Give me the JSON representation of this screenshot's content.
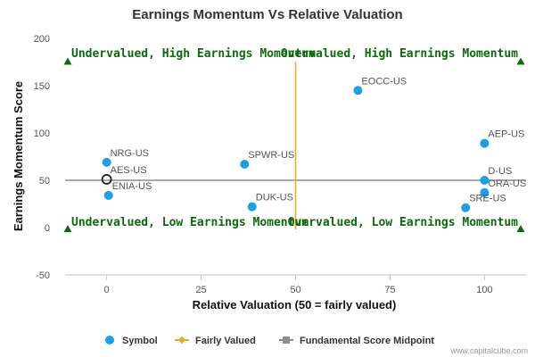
{
  "chart_data": {
    "type": "scatter",
    "title": "Earnings Momentum Vs Relative Valuation",
    "xlabel": "Relative Valuation (50 = fairly valued)",
    "ylabel": "Earnings Momentum Score",
    "xlim": [
      -11,
      111
    ],
    "ylim": [
      -50,
      200
    ],
    "x_ticks": [
      0,
      25,
      50,
      75,
      100
    ],
    "y_ticks": [
      -50,
      0,
      50,
      100,
      150,
      200
    ],
    "grid": false,
    "legend_position": "bottom",
    "points": [
      {
        "label": "EOCC-US",
        "x": 66.5,
        "y": 145
      },
      {
        "label": "AEP-US",
        "x": 100,
        "y": 89
      },
      {
        "label": "NRG-US",
        "x": 0,
        "y": 69
      },
      {
        "label": "SPWR-US",
        "x": 36.5,
        "y": 67
      },
      {
        "label": "AES-US",
        "x": 0,
        "y": 51,
        "highlighted": true
      },
      {
        "label": "D-US",
        "x": 100,
        "y": 50
      },
      {
        "label": "ENIA-US",
        "x": 0.5,
        "y": 34
      },
      {
        "label": "ORA-US",
        "x": 100,
        "y": 37
      },
      {
        "label": "DUK-US",
        "x": 38.5,
        "y": 22
      },
      {
        "label": "SRE-US",
        "x": 95,
        "y": 21
      }
    ],
    "fairly_valued_x": 50,
    "fairly_valued_y_range": [
      -2,
      175
    ],
    "midpoint_y": 50,
    "quadrant_labels": {
      "top_left": "Undervalued, High Earnings Momentum",
      "top_right": "Overvalued, High Earnings Momentum",
      "bottom_left": "Undervalued, Low Earnings Momentum",
      "bottom_right": "Overvalued, Low Earnings Momentum"
    },
    "quadrant_marker_y": {
      "top": 175,
      "bottom": -2
    },
    "legend": [
      {
        "label": "Symbol",
        "marker": "circle"
      },
      {
        "label": "Fairly Valued",
        "marker": "line-diamond"
      },
      {
        "label": "Fundamental Score Midpoint",
        "marker": "line-square"
      }
    ],
    "colors": {
      "symbol": "#1aa0e6",
      "fairly_valued": "#f5a623",
      "midpoint": "#8a8f96",
      "quadrant_text": "#0b6b0b",
      "axis_line": "#c0c6d0"
    }
  },
  "credit": "www.capitalcube.com"
}
